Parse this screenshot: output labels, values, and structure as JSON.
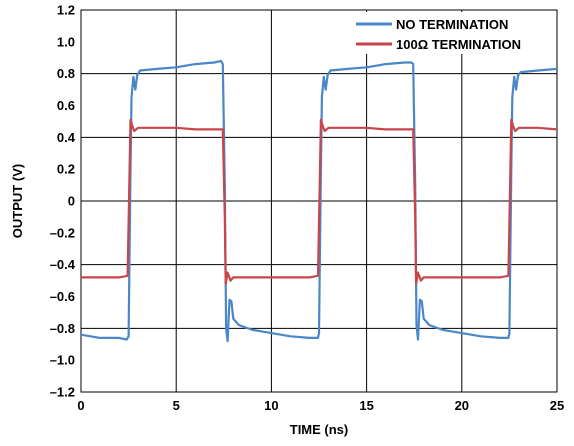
{
  "chart_data": {
    "type": "line",
    "xlabel": "TIME (ns)",
    "ylabel": "OUTPUT (V)",
    "xlim": [
      0,
      25
    ],
    "ylim": [
      -1.2,
      1.2
    ],
    "x_ticks": [
      "0",
      "5",
      "10",
      "15",
      "20",
      "25"
    ],
    "y_ticks": [
      "1.2",
      "1.0",
      "0.8",
      "0.6",
      "0.4",
      "0.2",
      "0",
      "–0.2",
      "–0.4",
      "–0.6",
      "–0.8",
      "–1.0",
      "–1.2"
    ],
    "grid": true,
    "legend_position": "top-right",
    "series": [
      {
        "name": "NO TERMINATION",
        "color": "#4a86c8",
        "points": [
          [
            0,
            -0.84
          ],
          [
            1.0,
            -0.86
          ],
          [
            2.0,
            -0.86
          ],
          [
            2.4,
            -0.87
          ],
          [
            2.5,
            -0.85
          ],
          [
            2.6,
            0.2
          ],
          [
            2.65,
            0.65
          ],
          [
            2.75,
            0.78
          ],
          [
            2.85,
            0.7
          ],
          [
            2.95,
            0.79
          ],
          [
            3.1,
            0.82
          ],
          [
            4.0,
            0.83
          ],
          [
            5.0,
            0.84
          ],
          [
            6.0,
            0.86
          ],
          [
            7.0,
            0.87
          ],
          [
            7.35,
            0.88
          ],
          [
            7.45,
            0.86
          ],
          [
            7.55,
            0.1
          ],
          [
            7.62,
            -0.8
          ],
          [
            7.7,
            -0.88
          ],
          [
            7.8,
            -0.62
          ],
          [
            7.9,
            -0.63
          ],
          [
            8.0,
            -0.74
          ],
          [
            8.3,
            -0.78
          ],
          [
            9.0,
            -0.81
          ],
          [
            10.0,
            -0.83
          ],
          [
            11.0,
            -0.85
          ],
          [
            12.0,
            -0.86
          ],
          [
            12.45,
            -0.86
          ],
          [
            12.5,
            -0.83
          ],
          [
            12.6,
            0.2
          ],
          [
            12.65,
            0.65
          ],
          [
            12.75,
            0.78
          ],
          [
            12.85,
            0.7
          ],
          [
            12.95,
            0.79
          ],
          [
            13.1,
            0.82
          ],
          [
            14.0,
            0.83
          ],
          [
            15.0,
            0.84
          ],
          [
            16.0,
            0.86
          ],
          [
            17.0,
            0.87
          ],
          [
            17.35,
            0.87
          ],
          [
            17.45,
            0.86
          ],
          [
            17.55,
            0.1
          ],
          [
            17.62,
            -0.78
          ],
          [
            17.7,
            -0.87
          ],
          [
            17.8,
            -0.62
          ],
          [
            17.9,
            -0.63
          ],
          [
            18.0,
            -0.74
          ],
          [
            18.3,
            -0.78
          ],
          [
            19.0,
            -0.81
          ],
          [
            20.0,
            -0.83
          ],
          [
            21.0,
            -0.85
          ],
          [
            22.0,
            -0.86
          ],
          [
            22.45,
            -0.86
          ],
          [
            22.5,
            -0.83
          ],
          [
            22.6,
            0.2
          ],
          [
            22.65,
            0.65
          ],
          [
            22.75,
            0.78
          ],
          [
            22.85,
            0.7
          ],
          [
            22.95,
            0.79
          ],
          [
            23.1,
            0.81
          ],
          [
            24.0,
            0.82
          ],
          [
            25.0,
            0.83
          ]
        ]
      },
      {
        "name": "100Ω TERMINATION",
        "color": "#c8464a",
        "points": [
          [
            0,
            -0.48
          ],
          [
            1.0,
            -0.48
          ],
          [
            2.0,
            -0.48
          ],
          [
            2.45,
            -0.47
          ],
          [
            2.55,
            0.2
          ],
          [
            2.6,
            0.51
          ],
          [
            2.7,
            0.47
          ],
          [
            2.8,
            0.44
          ],
          [
            3.0,
            0.46
          ],
          [
            4.0,
            0.46
          ],
          [
            5.0,
            0.46
          ],
          [
            6.0,
            0.45
          ],
          [
            7.0,
            0.45
          ],
          [
            7.45,
            0.45
          ],
          [
            7.55,
            -0.1
          ],
          [
            7.6,
            -0.52
          ],
          [
            7.7,
            -0.45
          ],
          [
            7.85,
            -0.5
          ],
          [
            8.0,
            -0.48
          ],
          [
            9.0,
            -0.48
          ],
          [
            10.0,
            -0.48
          ],
          [
            11.0,
            -0.48
          ],
          [
            12.0,
            -0.48
          ],
          [
            12.45,
            -0.47
          ],
          [
            12.55,
            0.2
          ],
          [
            12.6,
            0.51
          ],
          [
            12.7,
            0.47
          ],
          [
            12.8,
            0.44
          ],
          [
            13.0,
            0.46
          ],
          [
            14.0,
            0.46
          ],
          [
            15.0,
            0.46
          ],
          [
            16.0,
            0.45
          ],
          [
            17.0,
            0.45
          ],
          [
            17.45,
            0.45
          ],
          [
            17.55,
            -0.1
          ],
          [
            17.6,
            -0.52
          ],
          [
            17.7,
            -0.45
          ],
          [
            17.85,
            -0.5
          ],
          [
            18.0,
            -0.48
          ],
          [
            19.0,
            -0.48
          ],
          [
            20.0,
            -0.48
          ],
          [
            21.0,
            -0.48
          ],
          [
            22.0,
            -0.48
          ],
          [
            22.45,
            -0.47
          ],
          [
            22.55,
            0.2
          ],
          [
            22.6,
            0.51
          ],
          [
            22.7,
            0.47
          ],
          [
            22.8,
            0.44
          ],
          [
            23.0,
            0.46
          ],
          [
            24.0,
            0.46
          ],
          [
            25.0,
            0.45
          ]
        ]
      }
    ]
  }
}
